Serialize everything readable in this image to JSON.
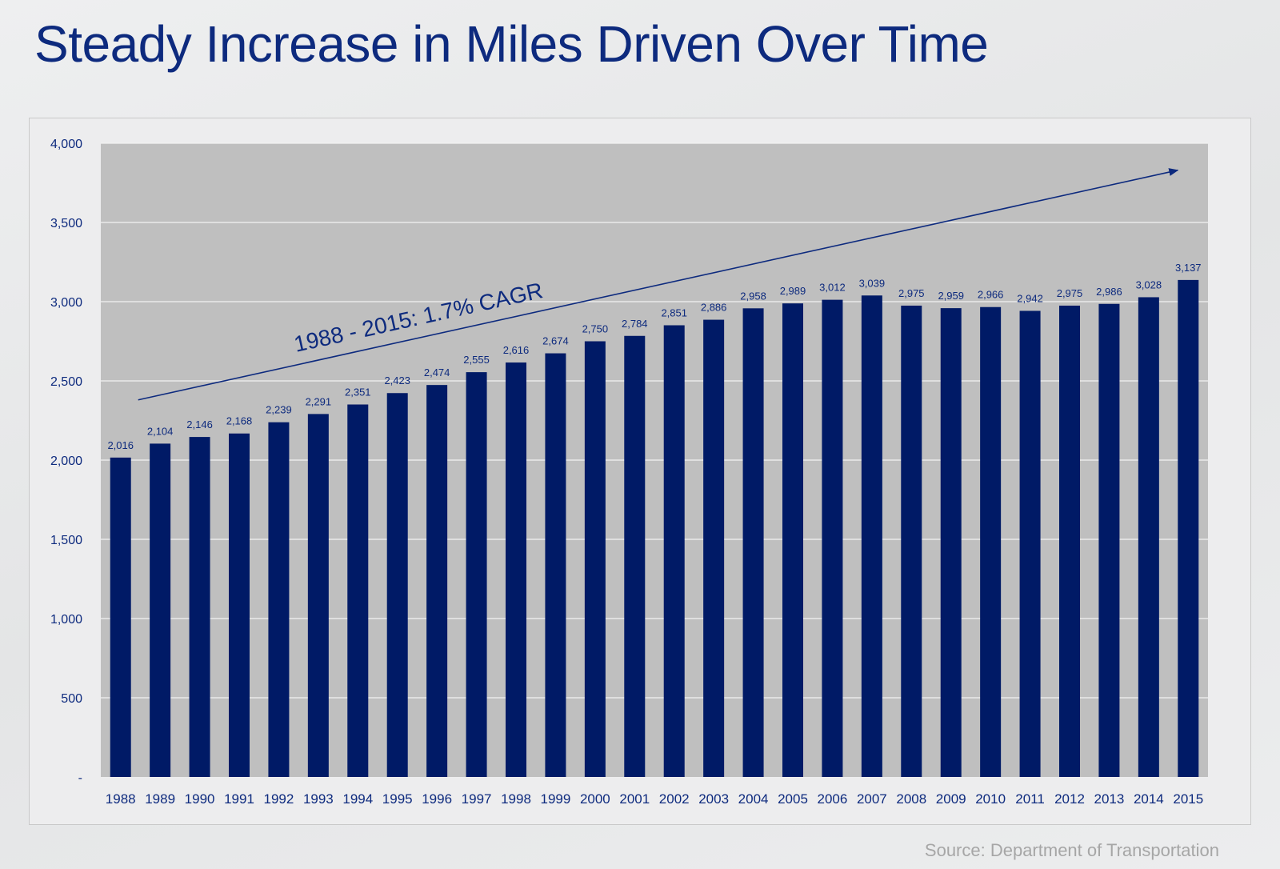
{
  "header": {
    "title": "Steady Increase in Miles Driven Over Time"
  },
  "footer": {
    "source": "Source: Department of Transportation"
  },
  "colors": {
    "bar": "#001a66",
    "plot_bg": "#bfbfbf",
    "gridline": "#f2f2f2",
    "text": "#0d2a7e",
    "source": "#a6a6a6"
  },
  "chart_data": {
    "type": "bar",
    "title": "",
    "xlabel": "",
    "ylabel": "",
    "ylim": [
      0,
      4000
    ],
    "y_ticks": [
      0,
      500,
      1000,
      1500,
      2000,
      2500,
      3000,
      3500,
      4000
    ],
    "y_tick_labels": [
      "-",
      "500",
      "1,000",
      "1,500",
      "2,000",
      "2,500",
      "3,000",
      "3,500",
      "4,000"
    ],
    "grid": true,
    "categories": [
      "1988",
      "1989",
      "1990",
      "1991",
      "1992",
      "1993",
      "1994",
      "1995",
      "1996",
      "1997",
      "1998",
      "1999",
      "2000",
      "2001",
      "2002",
      "2003",
      "2004",
      "2005",
      "2006",
      "2007",
      "2008",
      "2009",
      "2010",
      "2011",
      "2012",
      "2013",
      "2014",
      "2015"
    ],
    "values": [
      2016,
      2104,
      2146,
      2168,
      2239,
      2291,
      2351,
      2423,
      2474,
      2555,
      2616,
      2674,
      2750,
      2784,
      2851,
      2886,
      2958,
      2989,
      3012,
      3039,
      2975,
      2959,
      2966,
      2942,
      2975,
      2986,
      3028,
      3137
    ],
    "value_labels": [
      "2,016",
      "2,104",
      "2,146",
      "2,168",
      "2,239",
      "2,291",
      "2,351",
      "2,423",
      "2,474",
      "2,555",
      "2,616",
      "2,674",
      "2,750",
      "2,784",
      "2,851",
      "2,886",
      "2,958",
      "2,989",
      "3,012",
      "3,039",
      "2,975",
      "2,959",
      "2,966",
      "2,942",
      "2,975",
      "2,986",
      "3,028",
      "3,137"
    ],
    "annotation": {
      "text": "1988 - 2015: 1.7% CAGR",
      "arrow_from": {
        "x": "1988",
        "y": 2380
      },
      "arrow_to": {
        "x": "2015",
        "y": 3830
      }
    }
  }
}
